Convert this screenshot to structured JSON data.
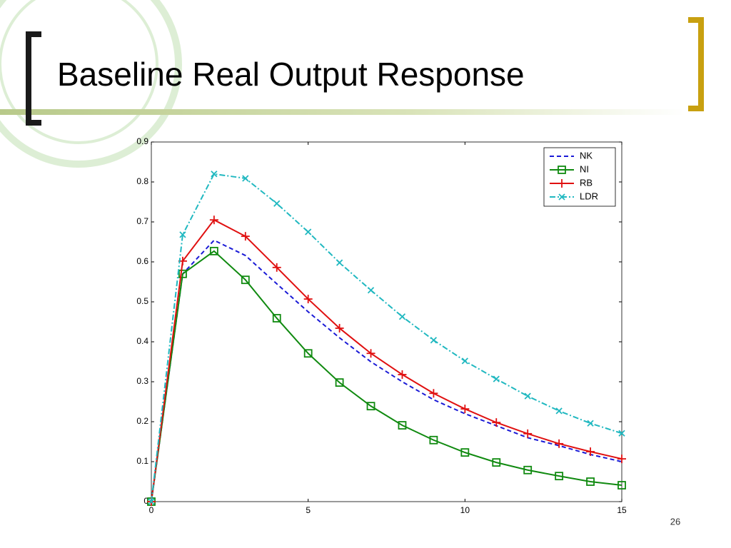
{
  "slide_title": "Baseline Real Output Response",
  "page_number": "26",
  "chart_data": {
    "type": "line",
    "x": [
      0,
      1,
      2,
      3,
      4,
      5,
      6,
      7,
      8,
      9,
      10,
      11,
      12,
      13,
      14,
      15
    ],
    "xlim": [
      0,
      15
    ],
    "xticks": [
      0,
      5,
      10,
      15
    ],
    "ylim": [
      0,
      0.9
    ],
    "yticks": [
      0,
      0.1,
      0.2,
      0.3,
      0.4,
      0.5,
      0.6,
      0.7,
      0.8,
      0.9
    ],
    "grid": false,
    "legend": "upper right",
    "series": [
      {
        "name": "NK",
        "color": "#1a1ad6",
        "dash": "6,4",
        "marker": "none",
        "values": [
          0,
          0.57,
          0.654,
          0.616,
          0.545,
          0.475,
          0.41,
          0.35,
          0.3,
          0.255,
          0.22,
          0.19,
          0.16,
          0.14,
          0.118,
          0.1
        ]
      },
      {
        "name": "NI",
        "color": "#108a10",
        "dash": "none",
        "marker": "square",
        "values": [
          0,
          0.57,
          0.627,
          0.555,
          0.459,
          0.371,
          0.298,
          0.239,
          0.191,
          0.154,
          0.123,
          0.098,
          0.079,
          0.064,
          0.05,
          0.041
        ]
      },
      {
        "name": "RB",
        "color": "#e01010",
        "dash": "none",
        "marker": "plus",
        "values": [
          0,
          0.602,
          0.705,
          0.664,
          0.586,
          0.507,
          0.434,
          0.371,
          0.318,
          0.271,
          0.232,
          0.198,
          0.17,
          0.145,
          0.125,
          0.107
        ]
      },
      {
        "name": "LDR",
        "color": "#20b8c0",
        "dash": "8,3,2,3",
        "marker": "x",
        "values": [
          0,
          0.668,
          0.82,
          0.809,
          0.746,
          0.675,
          0.598,
          0.529,
          0.463,
          0.404,
          0.352,
          0.307,
          0.264,
          0.227,
          0.196,
          0.171
        ]
      }
    ]
  }
}
